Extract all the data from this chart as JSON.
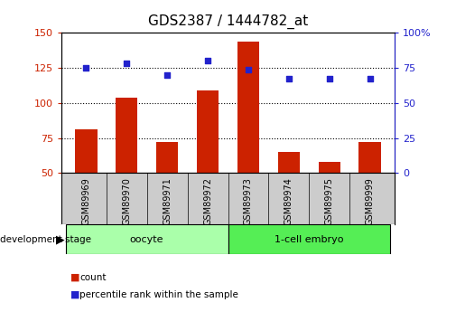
{
  "title": "GDS2387 / 1444782_at",
  "samples": [
    "GSM89969",
    "GSM89970",
    "GSM89971",
    "GSM89972",
    "GSM89973",
    "GSM89974",
    "GSM89975",
    "GSM89999"
  ],
  "counts": [
    81,
    104,
    72,
    109,
    144,
    65,
    58,
    72
  ],
  "percentile_ranks": [
    75,
    78,
    70,
    80,
    74,
    67,
    67,
    67
  ],
  "ylim_left": [
    50,
    150
  ],
  "ylim_right": [
    0,
    100
  ],
  "yticks_left": [
    50,
    75,
    100,
    125,
    150
  ],
  "yticks_right": [
    0,
    25,
    50,
    75,
    100
  ],
  "bar_color": "#cc2200",
  "dot_color": "#2222cc",
  "bar_bottom": 50,
  "grid_lines": [
    75,
    100,
    125
  ],
  "groups": [
    {
      "label": "oocyte",
      "indices": [
        0,
        1,
        2,
        3
      ],
      "color": "#aaffaa"
    },
    {
      "label": "1-cell embryo",
      "indices": [
        4,
        5,
        6,
        7
      ],
      "color": "#55ee55"
    }
  ],
  "group_label": "development stage",
  "legend_items": [
    {
      "label": "count",
      "color": "#cc2200"
    },
    {
      "label": "percentile rank within the sample",
      "color": "#2222cc"
    }
  ],
  "bg_color": "#ffffff",
  "plot_bg": "#ffffff",
  "tick_label_area_color": "#cccccc",
  "title_fontsize": 11,
  "tick_fontsize": 8,
  "sample_fontsize": 7
}
